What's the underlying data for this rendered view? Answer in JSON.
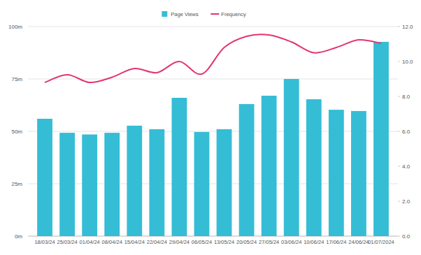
{
  "chart_data": {
    "type": "bar",
    "categories": [
      "18/03/24",
      "25/03/24",
      "01/04/24",
      "08/04/24",
      "15/04/24",
      "22/04/24",
      "29/04/24",
      "06/05/24",
      "13/05/24",
      "20/05/24",
      "27/05/24",
      "03/06/24",
      "10/06/24",
      "17/06/24",
      "24/06/24",
      "01/07/2024"
    ],
    "series": [
      {
        "name": "Page Views",
        "type": "bar",
        "color": "#35bdd6",
        "values": [
          56,
          49.3,
          48.5,
          49.3,
          52.7,
          51,
          66,
          49.7,
          51,
          63,
          67,
          75,
          65.3,
          60.3,
          59.7,
          92.7
        ]
      },
      {
        "name": "Frequency",
        "type": "line",
        "color": "#e2356f",
        "axis": "y2",
        "line_style": "smooth",
        "values": [
          8.8,
          9.24,
          8.8,
          9.1,
          9.6,
          9.36,
          10.0,
          9.28,
          10.8,
          11.44,
          11.52,
          11.12,
          10.5,
          10.8,
          11.24,
          11.04
        ]
      }
    ],
    "ylim": [
      0,
      100
    ],
    "yticks": [
      {
        "value": 0,
        "label": "0m"
      },
      {
        "value": 25,
        "label": "25m"
      },
      {
        "value": 50,
        "label": "50m"
      },
      {
        "value": 75,
        "label": "75m"
      },
      {
        "value": 100,
        "label": "100m"
      }
    ],
    "y2lim": [
      0,
      12
    ],
    "y2ticks": [
      {
        "value": 0,
        "label": "0.0"
      },
      {
        "value": 2,
        "label": "2.0"
      },
      {
        "value": 4,
        "label": "4.0"
      },
      {
        "value": 6,
        "label": "6.0"
      },
      {
        "value": 8,
        "label": "8.0"
      },
      {
        "value": 10,
        "label": "10.0"
      },
      {
        "value": 12,
        "label": "12.0"
      }
    ],
    "grid": true,
    "legend": "top"
  }
}
